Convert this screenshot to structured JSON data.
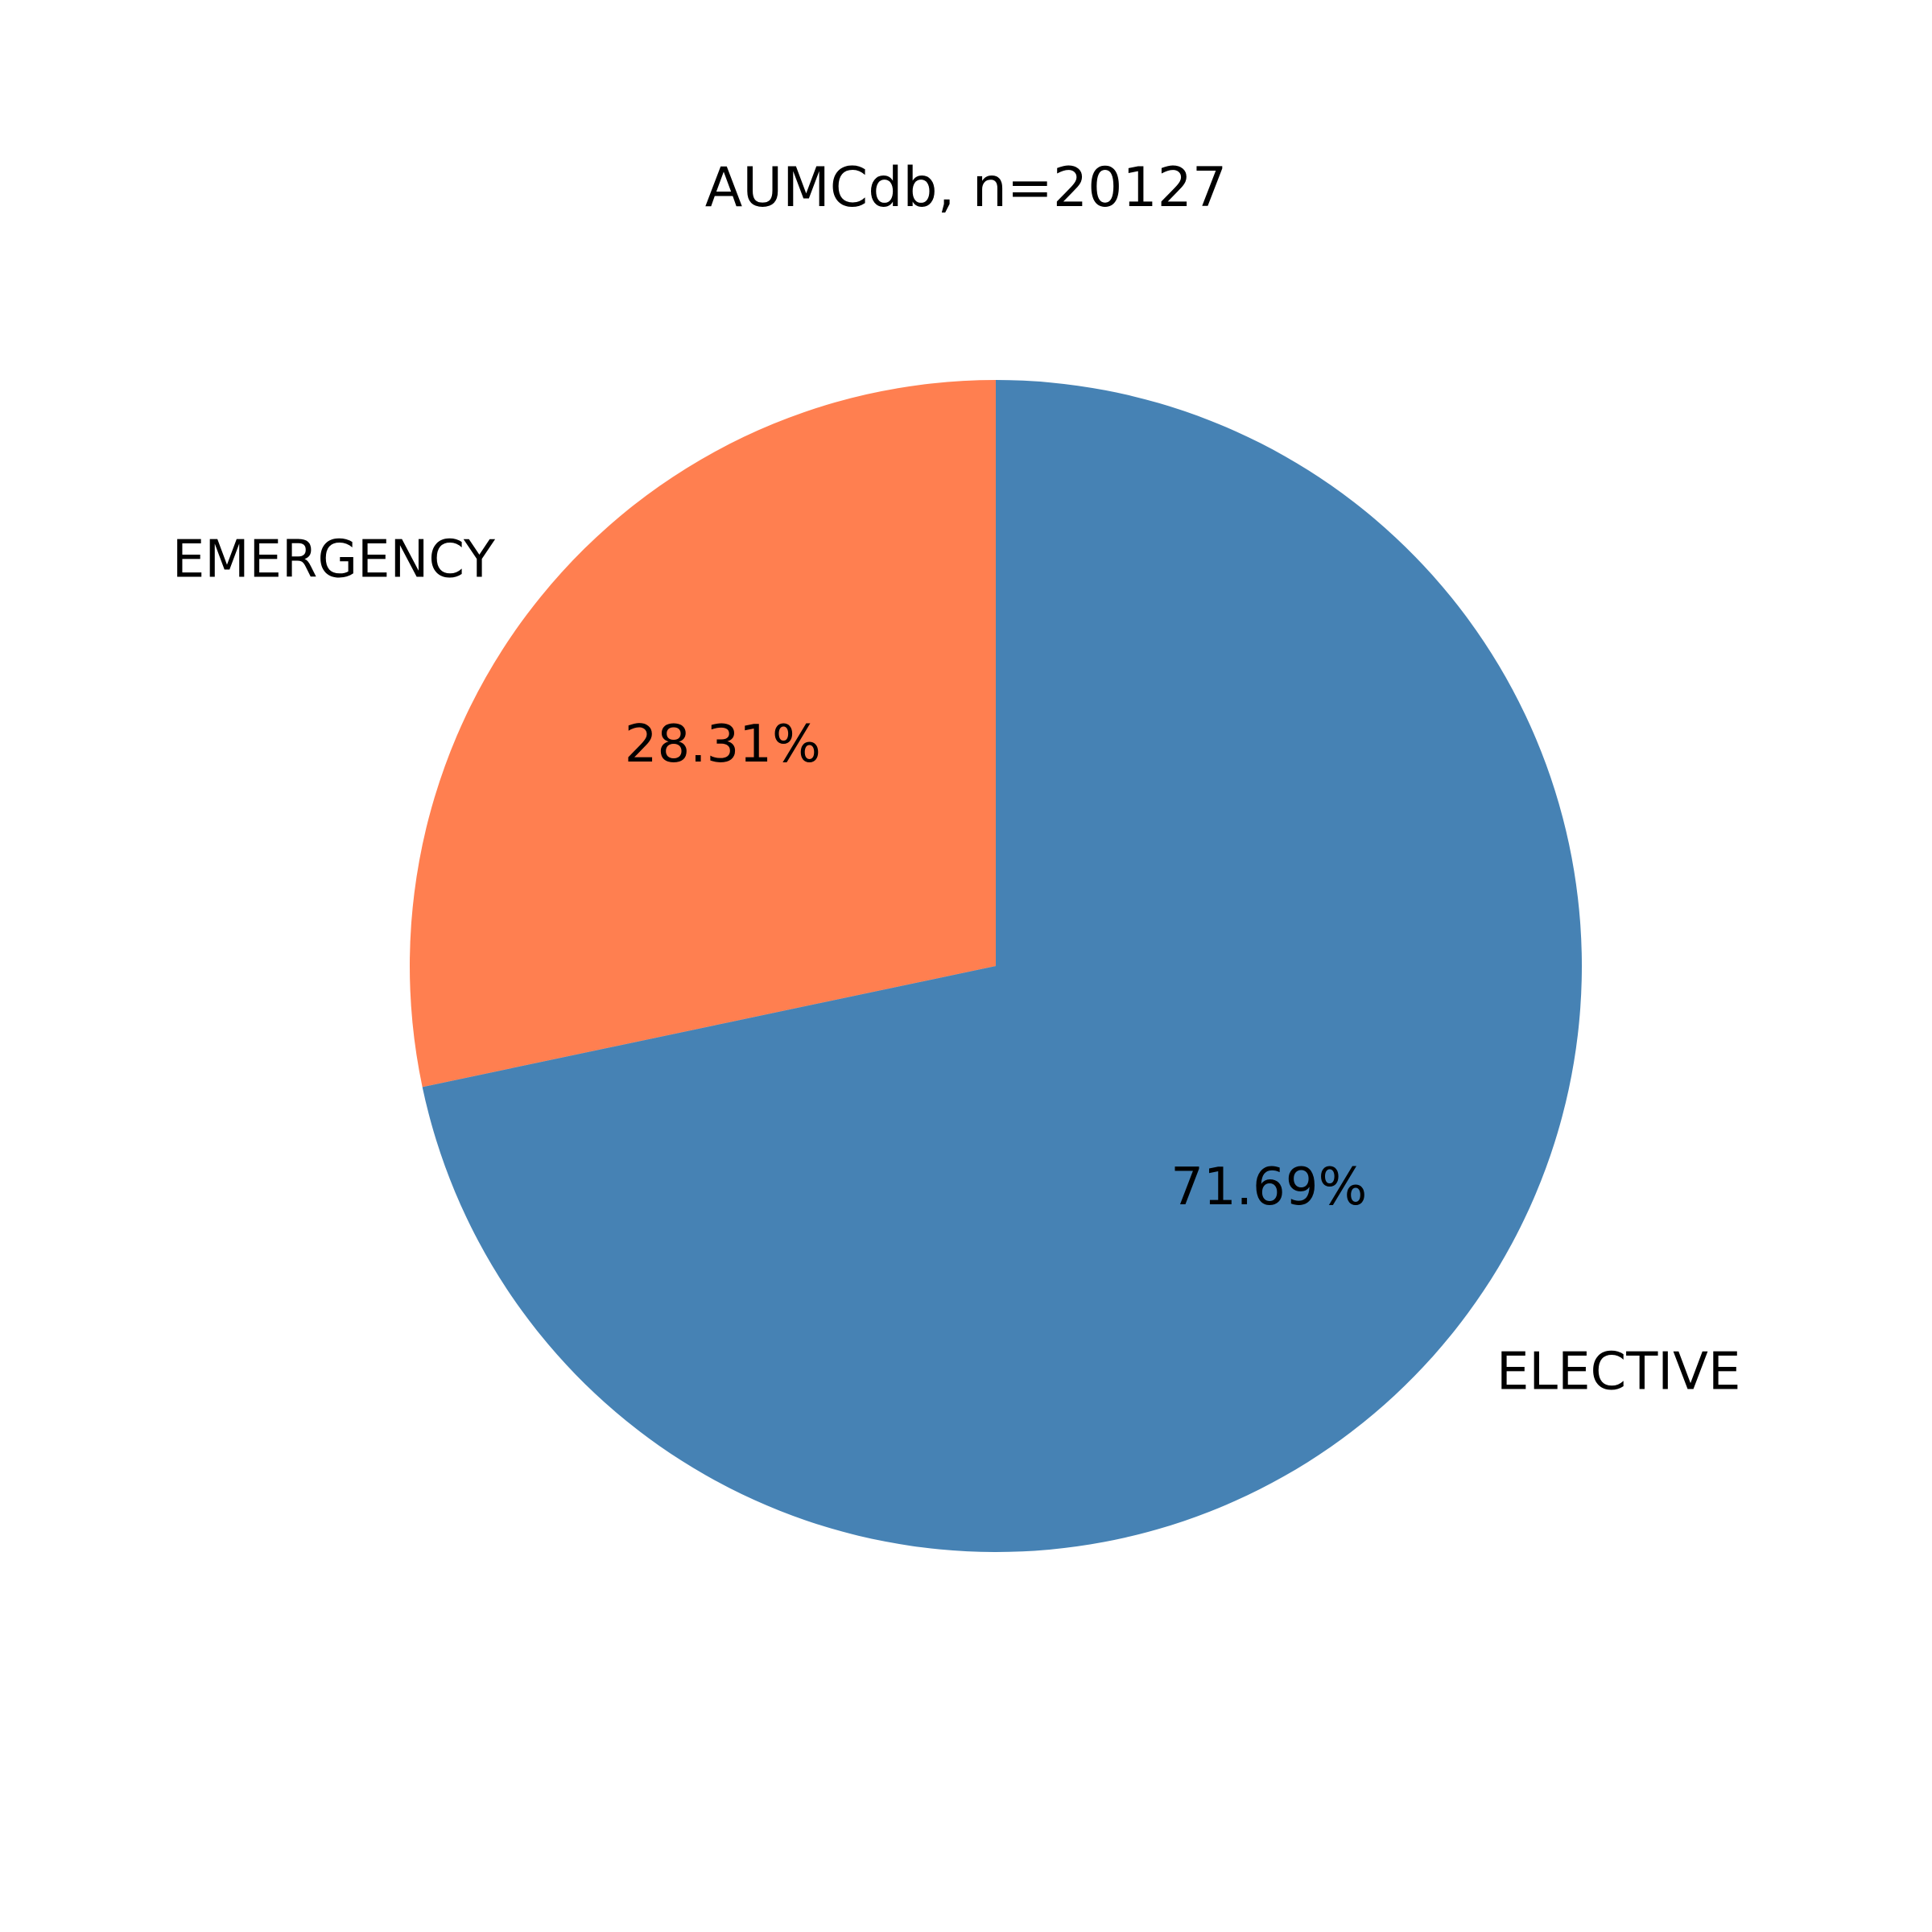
{
  "chart_data": {
    "type": "pie",
    "title": "AUMCdb, n=20127",
    "start_angle_deg": 90,
    "direction": "counterclockwise",
    "slices": [
      {
        "label": "EMERGENCY",
        "value": 28.31,
        "pct_label": "28.31%",
        "color": "#FF7F50"
      },
      {
        "label": "ELECTIVE",
        "value": 71.69,
        "pct_label": "71.69%",
        "color": "#4682B4"
      }
    ],
    "legend": "none"
  }
}
